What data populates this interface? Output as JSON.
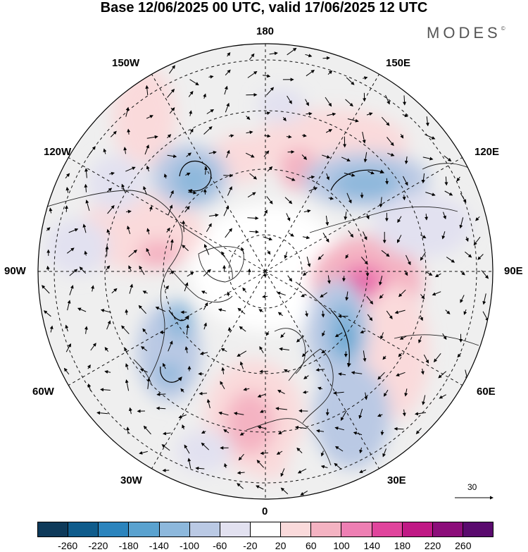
{
  "title": "Base 12/06/2025 00 UTC, valid 17/06/2025 12 UTC",
  "logo": "MODES",
  "logo_mark": "©",
  "longitude_labels": {
    "lon_180": "180",
    "lon_150w": "150W",
    "lon_150e": "150E",
    "lon_120w": "120W",
    "lon_120e": "120E",
    "lon_90w": "90W",
    "lon_90e": "90E",
    "lon_60w": "60W",
    "lon_60e": "60E",
    "lon_30w": "30W",
    "lon_30e": "30E",
    "lon_0": "0"
  },
  "wind_reference": "30",
  "colorbar": {
    "colors": [
      "#0e3a5a",
      "#0f5c8c",
      "#2b84bd",
      "#5aa2cf",
      "#8db8dc",
      "#bac9e4",
      "#e2e1f0",
      "#ffffff",
      "#fadadb",
      "#f4b3c2",
      "#ee7fb3",
      "#e0449c",
      "#c01985",
      "#8c0d7a",
      "#5a0a6e"
    ],
    "ticks": [
      "-260",
      "-220",
      "-180",
      "-140",
      "-100",
      "-60",
      "-20",
      "20",
      "60",
      "100",
      "140",
      "180",
      "220",
      "260"
    ]
  }
}
